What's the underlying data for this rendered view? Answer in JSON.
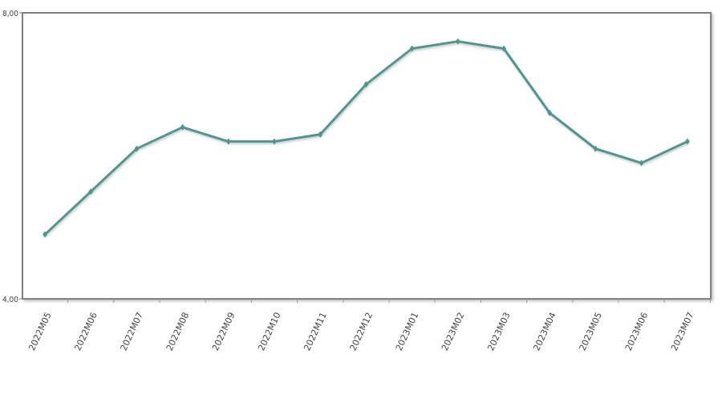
{
  "chart_data": {
    "type": "line",
    "title": "",
    "xlabel": "",
    "ylabel": "",
    "categories": [
      "2022M05",
      "2022M06",
      "2022M07",
      "2022M08",
      "2022M09",
      "2022M10",
      "2022M11",
      "2022M12",
      "2023M01",
      "2023M02",
      "2023M03",
      "2023M04",
      "2023M05",
      "2023M06",
      "2023M07"
    ],
    "series": [
      {
        "color": "#4f9690",
        "values": [
          4.9,
          5.5,
          6.1,
          6.4,
          6.2,
          6.2,
          6.3,
          7.0,
          7.5,
          7.6,
          7.5,
          6.6,
          6.1,
          5.9,
          6.2
        ]
      }
    ],
    "ylim": [
      4.0,
      8.0
    ],
    "yticks": [
      {
        "value": 4.0,
        "label": "4,00"
      },
      {
        "value": 8.0,
        "label": "8,00"
      }
    ],
    "grid": false,
    "legend": "none"
  }
}
